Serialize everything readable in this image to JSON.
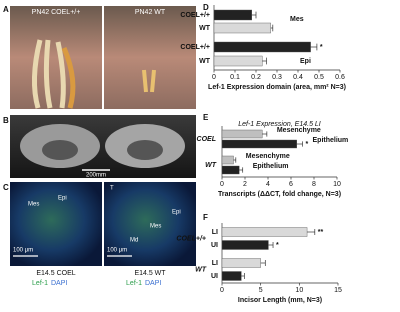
{
  "panel_a": {
    "letter": "A",
    "left_caption": "PN42 COEL+/+",
    "right_caption": "PN42 WT"
  },
  "panel_b": {
    "letter": "B",
    "scale_bar": "200mm"
  },
  "panel_c": {
    "letter": "C",
    "left": {
      "region_labels": [
        "Mes",
        "Epi"
      ],
      "scale_bar": "100 μm",
      "caption": "E14.5 COEL",
      "stain": [
        "Lef-1",
        "DAPI"
      ]
    },
    "right": {
      "region_labels": [
        "T",
        "Mes",
        "Epi",
        "Md"
      ],
      "scale_bar": "100 μm",
      "caption": "E14.5 WT",
      "stain": [
        "Lef-1",
        "DAPI"
      ]
    }
  },
  "chart_data": [
    {
      "type": "bar",
      "panel_label": "D",
      "xlabel": "Lef-1 Expression domain (area, mm² N=3)",
      "categories": [
        "COEL+/+",
        "WT",
        "COEL+/+",
        "WT"
      ],
      "values": [
        0.18,
        0.27,
        0.46,
        0.23
      ],
      "errors": [
        0.02,
        0.01,
        0.03,
        0.02
      ],
      "colors": [
        "#222222",
        "#d9d9d9",
        "#222222",
        "#d9d9d9"
      ],
      "significance": [
        null,
        null,
        "*",
        null
      ],
      "annotations": [
        "Mes",
        "Epi"
      ],
      "xlim": [
        0,
        0.6
      ],
      "xticks": [
        0,
        0.1,
        0.2,
        0.3,
        0.4,
        0.5,
        0.6
      ]
    },
    {
      "type": "bar",
      "panel_label": "E",
      "title": "Lef-1 Expression, E14.5 LI",
      "xlabel": "Transcripts (ΔΔCT, fold change, N=3)",
      "categories": [
        "Mesenchyme",
        "Epithelium",
        "Mesenchyme",
        "Epithelium"
      ],
      "values": [
        3.5,
        6.5,
        1,
        1.5
      ],
      "errors": [
        0.4,
        0.5,
        0.2,
        0.3
      ],
      "colors": [
        "#bfbfbf",
        "#222222",
        "#bfbfbf",
        "#222222"
      ],
      "significance": [
        null,
        "*",
        null,
        null
      ],
      "groups": [
        "COEL",
        "WT"
      ],
      "xlim": [
        0,
        10
      ],
      "xticks": [
        0,
        2,
        4,
        6,
        8,
        10
      ]
    },
    {
      "type": "bar",
      "panel_label": "F",
      "xlabel": "Incisor Length (mm, N=3)",
      "categories": [
        "LI",
        "UI",
        "LI",
        "UI"
      ],
      "values": [
        11,
        6,
        5,
        2.5
      ],
      "errors": [
        1,
        0.6,
        0.6,
        0.4
      ],
      "colors": [
        "#d9d9d9",
        "#222222",
        "#d9d9d9",
        "#222222"
      ],
      "significance": [
        "**",
        "*",
        null,
        null
      ],
      "groups": [
        "COEL+/+",
        "WT"
      ],
      "xlim": [
        0,
        15
      ],
      "xticks": [
        0,
        5,
        10,
        15
      ]
    }
  ]
}
